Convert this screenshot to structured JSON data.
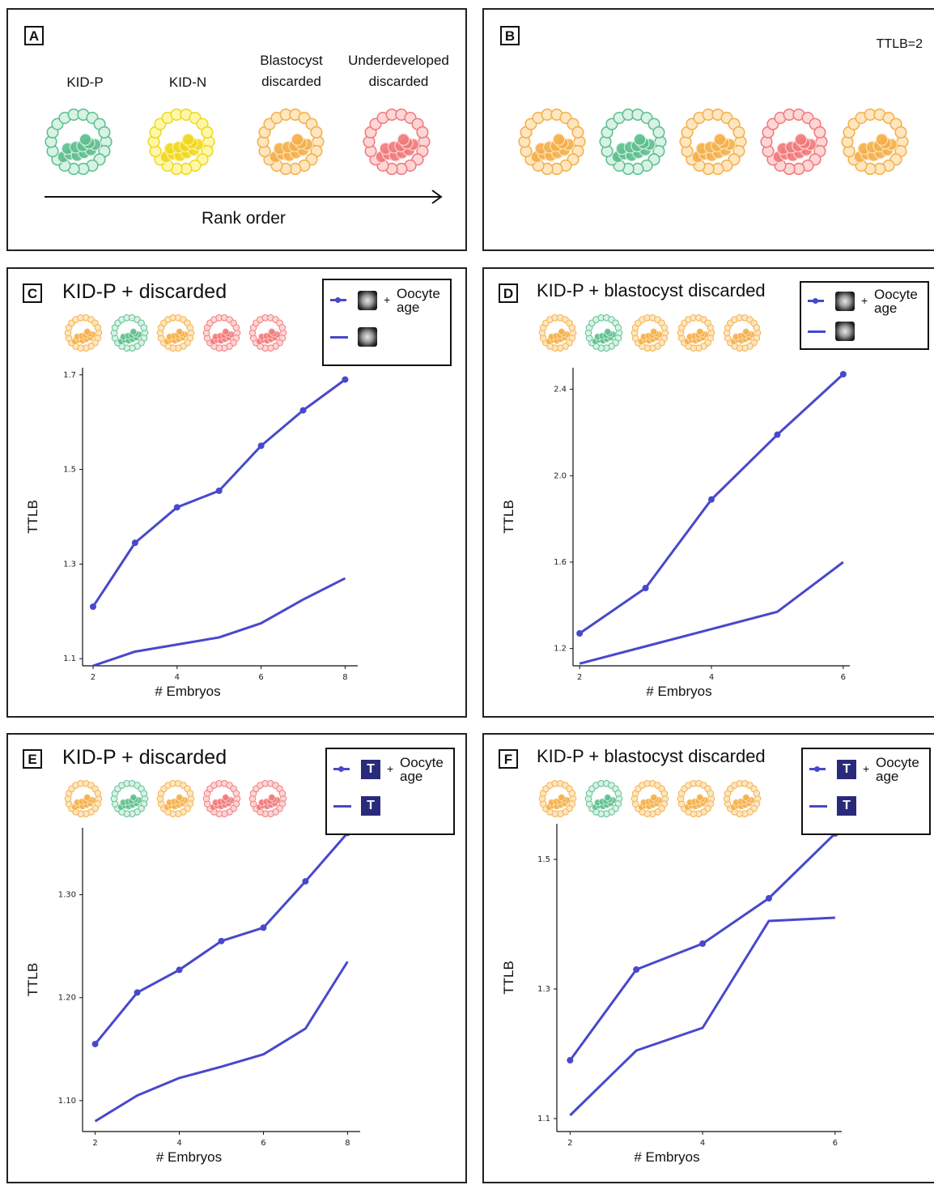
{
  "colors": {
    "line": "#4848cc",
    "green": "#5fbf8f",
    "green_fill": "#d8f2e5",
    "yellow": "#f0d820",
    "yellow_fill": "#fff7a8",
    "orange": "#f5b04a",
    "orange_fill": "#fde6c0",
    "red": "#f27a7a",
    "red_fill": "#fdd6d6"
  },
  "panel_a": {
    "letter": "A",
    "labels": [
      {
        "text": "KID-P",
        "color": "green"
      },
      {
        "text": "KID-N",
        "color": "yellow"
      },
      {
        "text": "Blastocyst discarded",
        "color": "orange"
      },
      {
        "text": "Underdeveloped discarded",
        "color": "red"
      }
    ],
    "axis_label": "Rank order"
  },
  "panel_b": {
    "letter": "B",
    "ttlb": "TTLB=2",
    "sequence": [
      "orange",
      "green",
      "orange",
      "red",
      "orange"
    ]
  },
  "legend": {
    "age_text": "Oocyte age",
    "plus": "+",
    "t_label": "T"
  },
  "chart_data": [
    {
      "letter": "C",
      "type": "line",
      "title": "KID-P + discarded",
      "sequence": [
        "orange",
        "green",
        "orange",
        "red",
        "red"
      ],
      "marker": "image",
      "xlabel": "# Embryos",
      "ylabel": "TTLB",
      "xlim": [
        1.75,
        8.3
      ],
      "ylim": [
        1.085,
        1.715
      ],
      "xticks": [
        2,
        4,
        6,
        8
      ],
      "yticks": [
        1.1,
        1.3,
        1.5,
        1.7
      ],
      "tick_decimals": 1,
      "series": [
        {
          "label": "with age",
          "dots": true,
          "x": [
            2,
            3,
            4,
            5,
            6,
            7,
            8
          ],
          "y": [
            1.21,
            1.345,
            1.42,
            1.455,
            1.55,
            1.625,
            1.69
          ]
        },
        {
          "label": "without age",
          "dots": false,
          "x": [
            2,
            3,
            4,
            5,
            6,
            7,
            8
          ],
          "y": [
            1.085,
            1.115,
            1.13,
            1.145,
            1.175,
            1.225,
            1.27
          ]
        }
      ]
    },
    {
      "letter": "D",
      "type": "line",
      "title": "KID-P + blastocyst discarded",
      "sequence": [
        "orange",
        "green",
        "orange",
        "orange",
        "orange"
      ],
      "marker": "image",
      "xlabel": "# Embryos",
      "ylabel": "TTLB",
      "xlim": [
        1.9,
        6.1
      ],
      "ylim": [
        1.12,
        2.5
      ],
      "xticks": [
        2,
        4,
        6
      ],
      "yticks": [
        1.2,
        1.6,
        2.0,
        2.4
      ],
      "tick_decimals": 1,
      "series": [
        {
          "label": "with age",
          "dots": true,
          "x": [
            2,
            3,
            4,
            5,
            6
          ],
          "y": [
            1.27,
            1.48,
            1.89,
            2.19,
            2.47
          ]
        },
        {
          "label": "without age",
          "dots": false,
          "x": [
            2,
            3,
            4,
            5,
            6
          ],
          "y": [
            1.13,
            1.21,
            1.29,
            1.37,
            1.6
          ]
        }
      ]
    },
    {
      "letter": "E",
      "type": "line",
      "title": "KID-P + discarded",
      "sequence": [
        "orange",
        "green",
        "orange",
        "red",
        "red"
      ],
      "marker": "T",
      "xlabel": "# Embryos",
      "ylabel": "TTLB",
      "xlim": [
        1.7,
        8.3
      ],
      "ylim": [
        1.07,
        1.365
      ],
      "xticks": [
        2,
        4,
        6,
        8
      ],
      "yticks": [
        1.1,
        1.2,
        1.3
      ],
      "tick_decimals": 2,
      "series": [
        {
          "label": "with age",
          "dots": true,
          "x": [
            2,
            3,
            4,
            5,
            6,
            7,
            8
          ],
          "y": [
            1.155,
            1.205,
            1.227,
            1.255,
            1.268,
            1.313,
            1.36
          ]
        },
        {
          "label": "without age",
          "dots": false,
          "x": [
            2,
            3,
            4,
            5,
            6,
            7,
            8
          ],
          "y": [
            1.08,
            1.105,
            1.122,
            1.133,
            1.145,
            1.17,
            1.235
          ]
        }
      ]
    },
    {
      "letter": "F",
      "type": "line",
      "title": "KID-P + blastocyst discarded",
      "sequence": [
        "orange",
        "green",
        "orange",
        "orange",
        "orange"
      ],
      "marker": "T",
      "xlabel": "# Embryos",
      "ylabel": "TTLB",
      "xlim": [
        1.8,
        6.1
      ],
      "ylim": [
        1.08,
        1.555
      ],
      "xticks": [
        2,
        4,
        6
      ],
      "yticks": [
        1.1,
        1.3,
        1.5
      ],
      "tick_decimals": 1,
      "series": [
        {
          "label": "with age",
          "dots": true,
          "x": [
            2,
            3,
            4,
            5,
            6
          ],
          "y": [
            1.19,
            1.33,
            1.37,
            1.44,
            1.54
          ]
        },
        {
          "label": "without age",
          "dots": false,
          "x": [
            2,
            3,
            4,
            5,
            6
          ],
          "y": [
            1.105,
            1.205,
            1.24,
            1.405,
            1.41
          ]
        }
      ]
    }
  ]
}
